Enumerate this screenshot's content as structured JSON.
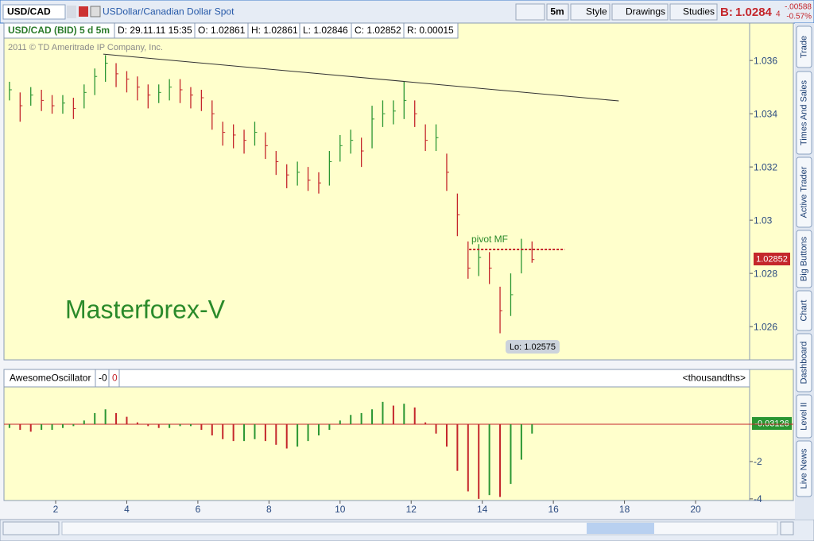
{
  "toolbar": {
    "symbol": "USD/CAD",
    "description": "USDollar/Canadian Dollar Spot",
    "timeframe": "5m",
    "style": "Style",
    "drawings": "Drawings",
    "studies": "Studies",
    "bid_label": "B:",
    "bid_price": "1.0284",
    "bid_pip": "4",
    "change": "-.00588",
    "change_pct": "-0.57%"
  },
  "header": {
    "title": "USD/CAD (BID) 5 d 5m",
    "date": "D: 29.11.11 15:35",
    "open": "O: 1.02861",
    "high": "H: 1.02861",
    "low": "L: 1.02846",
    "close": "C: 1.02852",
    "range": "R: 0.00015"
  },
  "side_tabs": [
    "Trade",
    "Times And Sales",
    "Active Trader",
    "Big Buttons",
    "Chart",
    "Dashboard",
    "Level II",
    "Live News"
  ],
  "chart_data": [
    {
      "type": "ohlc",
      "copyright": "2011 © TD Ameritrade IP Company, Inc.",
      "watermark": "Masterforex-V",
      "pivot_label": "pivot MF",
      "low_label": "Lo: 1.02575",
      "last_label": "1.02852",
      "x": [
        0.7,
        1.0,
        1.3,
        1.6,
        1.9,
        2.2,
        2.5,
        2.8,
        3.1,
        3.4,
        3.7,
        4.0,
        4.3,
        4.6,
        4.9,
        5.2,
        5.5,
        5.8,
        6.1,
        6.4,
        6.7,
        7.0,
        7.3,
        7.6,
        7.9,
        8.2,
        8.5,
        8.8,
        9.1,
        9.4,
        9.7,
        10.0,
        10.3,
        10.6,
        10.9,
        11.2,
        11.5,
        11.8,
        12.1,
        12.4,
        12.7,
        13.0,
        13.3,
        13.6,
        13.9,
        14.2,
        14.5,
        14.8,
        15.1,
        15.4
      ],
      "high": [
        1.0352,
        1.0348,
        1.035,
        1.0349,
        1.0347,
        1.0347,
        1.0346,
        1.0351,
        1.0357,
        1.0362,
        1.0359,
        1.0356,
        1.0354,
        1.0351,
        1.0351,
        1.0353,
        1.0353,
        1.035,
        1.0349,
        1.0345,
        1.0337,
        1.0336,
        1.0334,
        1.0337,
        1.0333,
        1.0326,
        1.0321,
        1.0322,
        1.032,
        1.0318,
        1.0326,
        1.0332,
        1.0334,
        1.0331,
        1.0343,
        1.0345,
        1.0345,
        1.0352,
        1.0345,
        1.0336,
        1.0336,
        1.0325,
        1.031,
        1.0292,
        1.0291,
        1.0288,
        1.0275,
        1.028,
        1.0293,
        1.0292
      ],
      "low": [
        1.0345,
        1.0337,
        1.0343,
        1.0341,
        1.034,
        1.034,
        1.0338,
        1.0342,
        1.0347,
        1.0352,
        1.035,
        1.0348,
        1.0345,
        1.0342,
        1.0344,
        1.0345,
        1.0344,
        1.0342,
        1.0341,
        1.0334,
        1.0328,
        1.0327,
        1.0325,
        1.0328,
        1.0323,
        1.0317,
        1.0312,
        1.0313,
        1.0311,
        1.031,
        1.0313,
        1.0322,
        1.0325,
        1.032,
        1.0327,
        1.0335,
        1.0336,
        1.0338,
        1.0335,
        1.0326,
        1.0326,
        1.0311,
        1.0294,
        1.0278,
        1.0279,
        1.0276,
        1.02575,
        1.0264,
        1.028,
        1.0284
      ],
      "close": [
        1.0349,
        1.0343,
        1.0347,
        1.0345,
        1.0343,
        1.0344,
        1.0342,
        1.0348,
        1.0354,
        1.0359,
        1.0355,
        1.0353,
        1.035,
        1.0347,
        1.0348,
        1.035,
        1.0349,
        1.0347,
        1.0346,
        1.034,
        1.0333,
        1.0332,
        1.033,
        1.0333,
        1.0328,
        1.0322,
        1.0317,
        1.0318,
        1.0315,
        1.0314,
        1.0322,
        1.0328,
        1.033,
        1.0326,
        1.0338,
        1.034,
        1.0341,
        1.0345,
        1.034,
        1.033,
        1.0331,
        1.0318,
        1.0302,
        1.0282,
        1.0286,
        1.0282,
        1.0266,
        1.0272,
        1.0289,
        1.02852
      ],
      "up_color": "#2a9632",
      "down_color": "#c4262b",
      "trendline": {
        "x": [
          3.34,
          17.84
        ],
        "y": [
          1.03624,
          1.03448
        ]
      },
      "pivot_line": {
        "x": [
          13.63,
          16.32
        ],
        "y": [
          1.0289,
          1.0289
        ]
      },
      "xlim": [
        0.546,
        21.52
      ],
      "xticks": [
        2,
        4,
        6,
        8,
        10,
        12,
        14,
        16,
        18,
        20
      ],
      "ylim": [
        1.02475,
        1.03684
      ],
      "yticks": [
        1.026,
        1.028,
        1.03,
        1.032,
        1.034,
        1.036
      ]
    },
    {
      "type": "bar",
      "title": "AwesomeOscillator",
      "current": "-0",
      "signal": "0",
      "units": "<thousandths>",
      "last_label": "-0.03126",
      "x": [
        0.7,
        1.0,
        1.3,
        1.6,
        1.9,
        2.2,
        2.5,
        2.8,
        3.1,
        3.4,
        3.7,
        4.0,
        4.3,
        4.6,
        4.9,
        5.2,
        5.5,
        5.8,
        6.1,
        6.4,
        6.7,
        7.0,
        7.3,
        7.6,
        7.9,
        8.2,
        8.5,
        8.8,
        9.1,
        9.4,
        9.7,
        10.0,
        10.3,
        10.6,
        10.9,
        11.2,
        11.5,
        11.8,
        12.1,
        12.4,
        12.7,
        13.0,
        13.3,
        13.6,
        13.9,
        14.2,
        14.5,
        14.8,
        15.1,
        15.4
      ],
      "values": [
        -0.2,
        -0.3,
        -0.4,
        -0.3,
        -0.3,
        -0.2,
        -0.1,
        0.2,
        0.6,
        0.8,
        0.6,
        0.4,
        0.1,
        -0.1,
        -0.2,
        -0.2,
        -0.1,
        -0.1,
        -0.3,
        -0.6,
        -0.8,
        -0.9,
        -0.9,
        -0.8,
        -0.9,
        -1.1,
        -1.3,
        -1.2,
        -0.9,
        -0.6,
        -0.3,
        0.2,
        0.5,
        0.6,
        0.8,
        1.2,
        1.0,
        1.1,
        0.9,
        0.1,
        -0.5,
        -1.2,
        -2.5,
        -3.6,
        -4.0,
        -3.8,
        -3.9,
        -3.2,
        -1.9,
        -0.5
      ],
      "up_color": "#2a9632",
      "down_color": "#c4262b",
      "xlim": [
        0.546,
        21.52
      ],
      "ylim": [
        -4.09,
        1.96
      ],
      "yticks": [
        -2,
        -4
      ]
    }
  ]
}
